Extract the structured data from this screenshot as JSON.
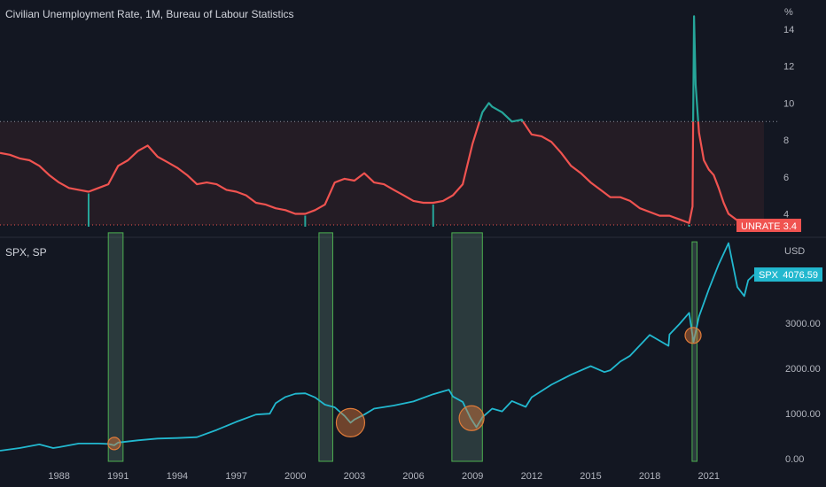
{
  "panes": {
    "top_title": "Civilian Unemployment Rate, 1M, Bureau of Labour Statistics",
    "top_unit": "%",
    "bottom_title": "SPX, SP",
    "bottom_unit": "USD"
  },
  "badges": {
    "unrate_label": "UNRATE",
    "unrate_value": "3.4",
    "spx_label": "SPX",
    "spx_value": "4076.59"
  },
  "colors": {
    "background": "#131722",
    "unrate_line": "#f05350",
    "unrate_above_threshold": "#26a69a",
    "spx_line": "#22b8cf",
    "recession_fill": "#4a6660",
    "recession_border": "#4caf50",
    "marker_fill": "#e07b39"
  },
  "chart_data": [
    {
      "type": "line",
      "title": "Civilian Unemployment Rate, 1M, Bureau of Labour Statistics",
      "ylabel": "%",
      "yticks": [
        4,
        6,
        8,
        10,
        12,
        14
      ],
      "ylim": [
        3.4,
        15.2
      ],
      "threshold": 9.0,
      "reference_level": 3.4,
      "last_value": 3.4,
      "series": [
        {
          "name": "UNRATE",
          "x": [
            1985.0,
            1985.5,
            1986.0,
            1986.5,
            1987.0,
            1987.5,
            1988.0,
            1988.5,
            1989.0,
            1989.5,
            1990.0,
            1990.5,
            1991.0,
            1991.5,
            1992.0,
            1992.5,
            1993.0,
            1993.5,
            1994.0,
            1994.5,
            1995.0,
            1995.5,
            1996.0,
            1996.5,
            1997.0,
            1997.5,
            1998.0,
            1998.5,
            1999.0,
            1999.5,
            2000.0,
            2000.5,
            2001.0,
            2001.5,
            2002.0,
            2002.5,
            2003.0,
            2003.5,
            2004.0,
            2004.5,
            2005.0,
            2005.5,
            2006.0,
            2006.5,
            2007.0,
            2007.5,
            2008.0,
            2008.5,
            2009.0,
            2009.5,
            2009.83,
            2010.0,
            2010.5,
            2011.0,
            2011.5,
            2012.0,
            2012.5,
            2013.0,
            2013.5,
            2014.0,
            2014.5,
            2015.0,
            2015.5,
            2016.0,
            2016.5,
            2017.0,
            2017.5,
            2018.0,
            2018.5,
            2019.0,
            2019.5,
            2020.0,
            2020.17,
            2020.25,
            2020.33,
            2020.5,
            2020.75,
            2021.0,
            2021.25,
            2021.5,
            2021.75,
            2022.0,
            2022.5,
            2023.0
          ],
          "values": [
            7.3,
            7.2,
            7.0,
            6.9,
            6.6,
            6.1,
            5.7,
            5.4,
            5.3,
            5.2,
            5.4,
            5.6,
            6.6,
            6.9,
            7.4,
            7.7,
            7.1,
            6.8,
            6.5,
            6.1,
            5.6,
            5.7,
            5.6,
            5.3,
            5.2,
            5.0,
            4.6,
            4.5,
            4.3,
            4.2,
            4.0,
            4.0,
            4.2,
            4.5,
            5.7,
            5.9,
            5.8,
            6.2,
            5.7,
            5.6,
            5.3,
            5.0,
            4.7,
            4.6,
            4.6,
            4.7,
            5.0,
            5.6,
            7.8,
            9.5,
            10.0,
            9.8,
            9.5,
            9.0,
            9.1,
            8.3,
            8.2,
            7.9,
            7.3,
            6.6,
            6.2,
            5.7,
            5.3,
            4.9,
            4.9,
            4.7,
            4.3,
            4.1,
            3.9,
            3.9,
            3.7,
            3.5,
            4.4,
            14.7,
            11.0,
            8.4,
            6.9,
            6.4,
            6.1,
            5.4,
            4.6,
            4.0,
            3.6,
            3.4
          ]
        }
      ]
    },
    {
      "type": "line",
      "title": "SPX, SP",
      "ylabel": "USD",
      "yticks": [
        0,
        1000,
        2000,
        3000
      ],
      "ylim": [
        -15,
        4900
      ],
      "xticks": [
        1988,
        1991,
        1994,
        1997,
        2000,
        2003,
        2006,
        2009,
        2012,
        2015,
        2018,
        2021
      ],
      "xlim": [
        1985.0,
        2023.8
      ],
      "last_value": 4076.59,
      "series": [
        {
          "name": "SPX",
          "x": [
            1985.0,
            1986.0,
            1987.0,
            1987.7,
            1988.0,
            1989.0,
            1990.0,
            1990.5,
            1990.8,
            1991.0,
            1992.0,
            1993.0,
            1994.0,
            1995.0,
            1996.0,
            1997.0,
            1998.0,
            1998.7,
            1999.0,
            1999.5,
            2000.0,
            2000.5,
            2001.0,
            2001.5,
            2002.0,
            2002.5,
            2002.8,
            2003.0,
            2003.5,
            2004.0,
            2005.0,
            2006.0,
            2007.0,
            2007.8,
            2008.0,
            2008.5,
            2008.9,
            2009.2,
            2009.5,
            2010.0,
            2010.5,
            2011.0,
            2011.7,
            2012.0,
            2013.0,
            2014.0,
            2015.0,
            2015.7,
            2016.0,
            2016.5,
            2017.0,
            2018.0,
            2018.95,
            2019.0,
            2019.5,
            2020.0,
            2020.22,
            2020.5,
            2021.0,
            2021.5,
            2022.0,
            2022.45,
            2022.8,
            2023.0,
            2023.3
          ],
          "values": [
            180,
            240,
            320,
            240,
            260,
            340,
            340,
            330,
            300,
            360,
            410,
            450,
            460,
            480,
            640,
            820,
            980,
            1000,
            1230,
            1370,
            1440,
            1450,
            1360,
            1200,
            1140,
            950,
            800,
            870,
            980,
            1110,
            1180,
            1270,
            1430,
            1530,
            1380,
            1260,
            900,
            700,
            920,
            1110,
            1050,
            1280,
            1150,
            1360,
            1640,
            1860,
            2050,
            1920,
            1960,
            2150,
            2280,
            2740,
            2500,
            2750,
            2980,
            3230,
            2580,
            3150,
            3750,
            4300,
            4770,
            3800,
            3600,
            3950,
            4076.59
          ]
        }
      ],
      "recessions": [
        {
          "start": 1990.5,
          "end": 1991.25,
          "top": 5000
        },
        {
          "start": 2001.2,
          "end": 2001.9,
          "top": 5000
        },
        {
          "start": 2007.95,
          "end": 2009.5,
          "top": 5000
        },
        {
          "start": 2020.15,
          "end": 2020.4,
          "top": 4800
        }
      ],
      "markers": [
        {
          "x": 1990.8,
          "y": 340
        },
        {
          "x": 2002.8,
          "y": 800
        },
        {
          "x": 2008.95,
          "y": 900
        },
        {
          "x": 2020.2,
          "y": 2730
        }
      ]
    }
  ]
}
